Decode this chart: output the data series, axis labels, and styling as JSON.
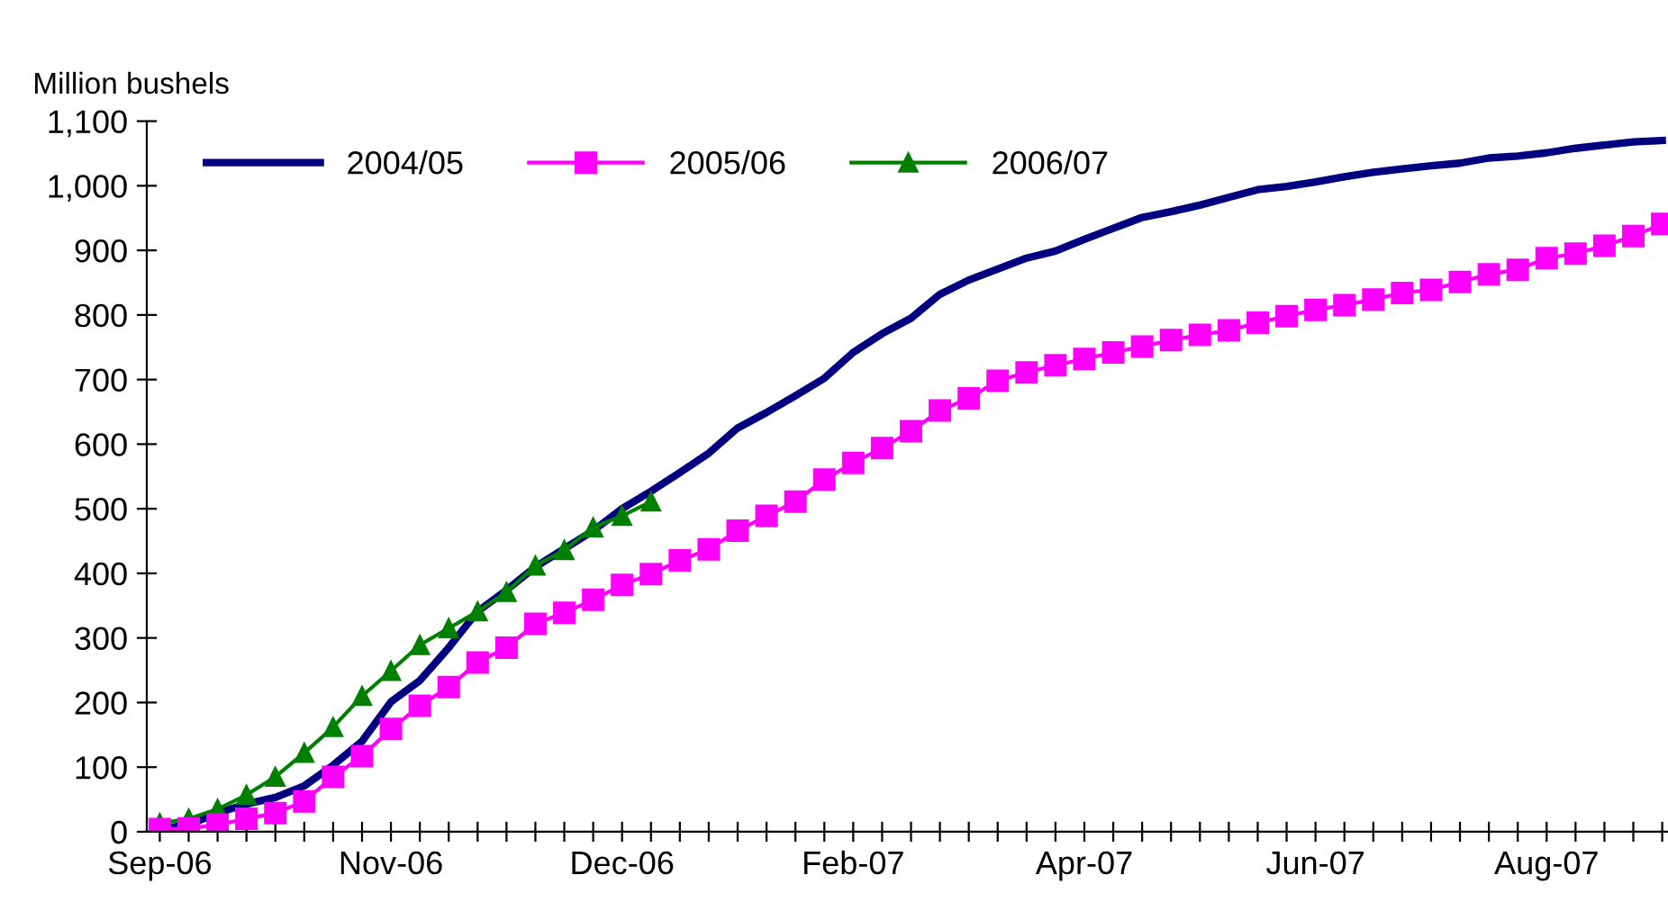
{
  "chart_data": {
    "type": "line",
    "ylabel": "Million bushels",
    "categories": [
      "Sep-06",
      null,
      null,
      null,
      null,
      null,
      null,
      null,
      "Nov-06",
      null,
      null,
      null,
      null,
      null,
      null,
      null,
      "Dec-06",
      null,
      null,
      null,
      null,
      null,
      null,
      null,
      "Feb-07",
      null,
      null,
      null,
      null,
      null,
      null,
      null,
      "Apr-07",
      null,
      null,
      null,
      null,
      null,
      null,
      null,
      "Jun-07",
      null,
      null,
      null,
      null,
      null,
      null,
      null,
      "Aug-07",
      null,
      null,
      null,
      null
    ],
    "series": [
      {
        "name": "2004/05",
        "color": "#000080",
        "marker": "none",
        "values": [
          4,
          11,
          29,
          43,
          53,
          71,
          103,
          140,
          201,
          234,
          285,
          341,
          374,
          410,
          438,
          466,
          500,
          527,
          556,
          586,
          625,
          649,
          675,
          702,
          742,
          771,
          795,
          832,
          854,
          871,
          888,
          899,
          917,
          934,
          951,
          960,
          970,
          982,
          994,
          999,
          1006,
          1014,
          1021,
          1026,
          1031,
          1035,
          1043,
          1046,
          1051,
          1058,
          1063,
          1068,
          1070
        ]
      },
      {
        "name": "2005/06",
        "color": "#ff00ff",
        "marker": "square",
        "values": [
          4,
          5,
          11,
          20,
          29,
          47,
          85,
          117,
          159,
          195,
          224,
          262,
          285,
          322,
          339,
          359,
          382,
          399,
          420,
          437,
          466,
          489,
          511,
          545,
          571,
          594,
          620,
          652,
          671,
          698,
          711,
          722,
          732,
          742,
          751,
          761,
          769,
          776,
          788,
          798,
          808,
          815,
          824,
          834,
          839,
          851,
          863,
          870,
          888,
          895,
          907,
          922,
          941
        ]
      },
      {
        "name": "2006/07",
        "color": "#008000",
        "marker": "triangle",
        "values": [
          13,
          20,
          35,
          57,
          85,
          122,
          162,
          210,
          249,
          289,
          315,
          341,
          371,
          412,
          436,
          471,
          489,
          511,
          null,
          null,
          null,
          null,
          null,
          null,
          null,
          null,
          null,
          null,
          null,
          null,
          null,
          null,
          null,
          null,
          null,
          null,
          null,
          null,
          null,
          null,
          null,
          null,
          null,
          null,
          null,
          null,
          null,
          null,
          null,
          null,
          null,
          null,
          null
        ]
      }
    ],
    "ylim": [
      0,
      1100
    ],
    "yticks": [
      0,
      100,
      200,
      300,
      400,
      500,
      600,
      700,
      800,
      900,
      {
        "value": 1000,
        "label": "1,000"
      },
      {
        "value": 1100,
        "label": "1,100"
      }
    ],
    "grid": false,
    "legend": "top left"
  }
}
